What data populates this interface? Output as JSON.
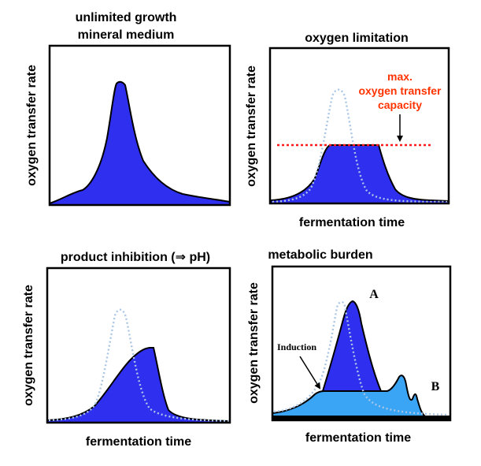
{
  "colors": {
    "fill_main": "#2f2ff0",
    "fill_light": "#3aa4f5",
    "dotted_curve": "#a9c6e6",
    "limit_line": "#ff1a1a",
    "limit_text": "#ff3300",
    "frame": "#000000"
  },
  "panels": {
    "top_left": {
      "title_line1": "unlimited growth",
      "title_line2": "mineral medium",
      "ylabel": "oxygen transfer rate"
    },
    "top_right": {
      "title": "oxygen limitation",
      "ylabel": "oxygen transfer rate",
      "xlabel": "fermentation time",
      "annotation_line1": "max.",
      "annotation_line2": "oxygen transfer",
      "annotation_line3": "capacity"
    },
    "bottom_left": {
      "title": "product inhibition (⇒ pH)",
      "ylabel": "oxygen transfer rate",
      "xlabel": "fermentation time"
    },
    "bottom_right": {
      "title": "metabolic burden",
      "ylabel": "oxygen transfer rate",
      "xlabel": "fermentation time",
      "label_a": "A",
      "label_b": "B",
      "label_induction": "Induction"
    }
  }
}
